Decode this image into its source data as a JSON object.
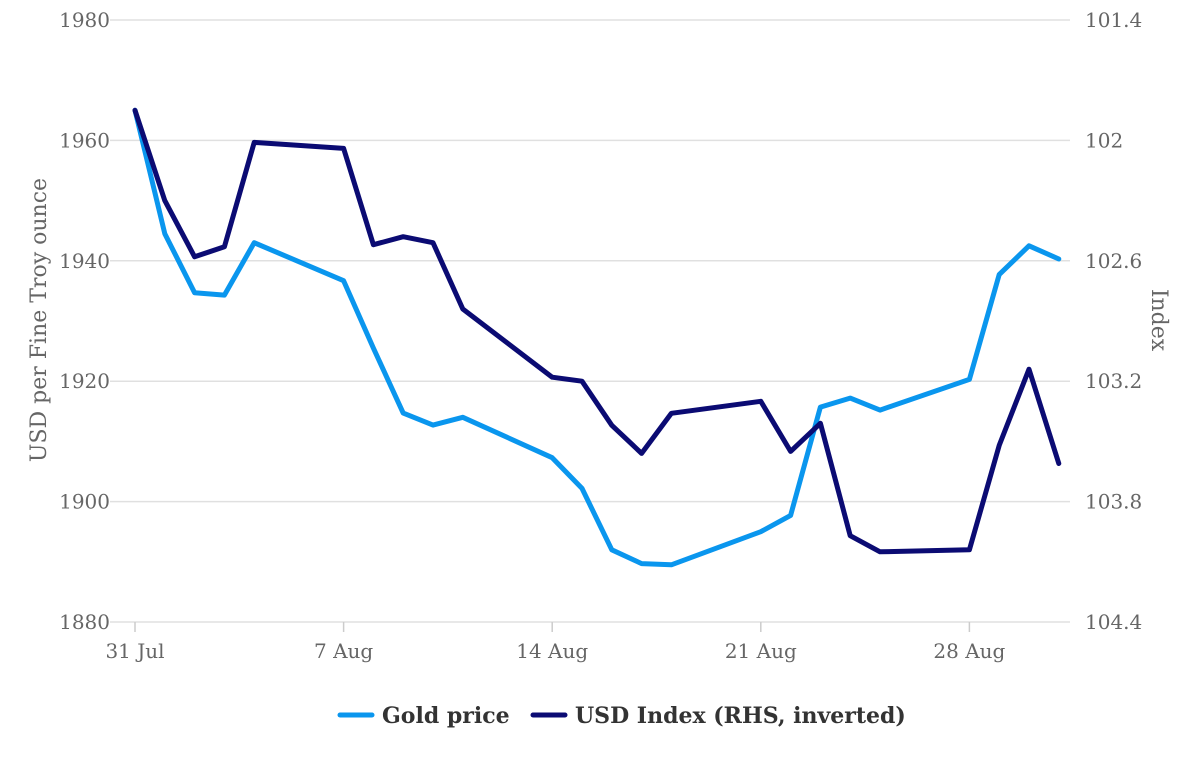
{
  "chart_data": {
    "type": "line",
    "x_tick_labels": [
      "31 Jul",
      "7 Aug",
      "14 Aug",
      "21 Aug",
      "28 Aug"
    ],
    "x_tick_day_index": [
      0,
      7,
      14,
      21,
      28
    ],
    "ylabel_left": "USD per Fine Troy ounce",
    "ylabel_right": "Index",
    "ylim_left": [
      1880,
      1980
    ],
    "yticks_left": [
      "1880",
      "1900",
      "1920",
      "1940",
      "1960",
      "1980"
    ],
    "ylim_right_inverted": [
      101.4,
      104.4
    ],
    "yticks_right": [
      "101.4",
      "102",
      "102.6",
      "103.2",
      "103.8",
      "104.4"
    ],
    "grid": true,
    "legend_position": "bottom",
    "series": [
      {
        "name": "Gold price",
        "axis": "left",
        "color": "#0a96ee",
        "points": [
          [
            0,
            1965
          ],
          [
            1,
            1944.5
          ],
          [
            2,
            1934.7
          ],
          [
            3,
            1934.3
          ],
          [
            4,
            1943
          ],
          [
            7,
            1936.7
          ],
          [
            8,
            1925.5
          ],
          [
            9,
            1914.7
          ],
          [
            10,
            1912.7
          ],
          [
            11,
            1914
          ],
          [
            14,
            1907.3
          ],
          [
            15,
            1902.2
          ],
          [
            16,
            1892
          ],
          [
            17,
            1889.7
          ],
          [
            18,
            1889.5
          ],
          [
            21,
            1895
          ],
          [
            22,
            1897.7
          ],
          [
            23,
            1915.7
          ],
          [
            24,
            1917.2
          ],
          [
            25,
            1915.2
          ],
          [
            28,
            1920.3
          ],
          [
            29,
            1937.7
          ],
          [
            30,
            1942.5
          ],
          [
            31,
            1940.3
          ]
        ]
      },
      {
        "name": "USD Index (RHS, inverted)",
        "axis": "right",
        "color": "#0b0b73",
        "points": [
          [
            0,
            101.85
          ],
          [
            1,
            102.3
          ],
          [
            2,
            102.58
          ],
          [
            3,
            102.53
          ],
          [
            4,
            102.01
          ],
          [
            7,
            102.04
          ],
          [
            8,
            102.52
          ],
          [
            9,
            102.48
          ],
          [
            10,
            102.51
          ],
          [
            11,
            102.84
          ],
          [
            14,
            103.18
          ],
          [
            15,
            103.2
          ],
          [
            16,
            103.42
          ],
          [
            17,
            103.56
          ],
          [
            18,
            103.36
          ],
          [
            21,
            103.3
          ],
          [
            22,
            103.55
          ],
          [
            23,
            103.41
          ],
          [
            24,
            103.97
          ],
          [
            25,
            104.05
          ],
          [
            28,
            104.04
          ],
          [
            29,
            103.52
          ],
          [
            30,
            103.14
          ],
          [
            31,
            103.61
          ]
        ]
      }
    ]
  }
}
